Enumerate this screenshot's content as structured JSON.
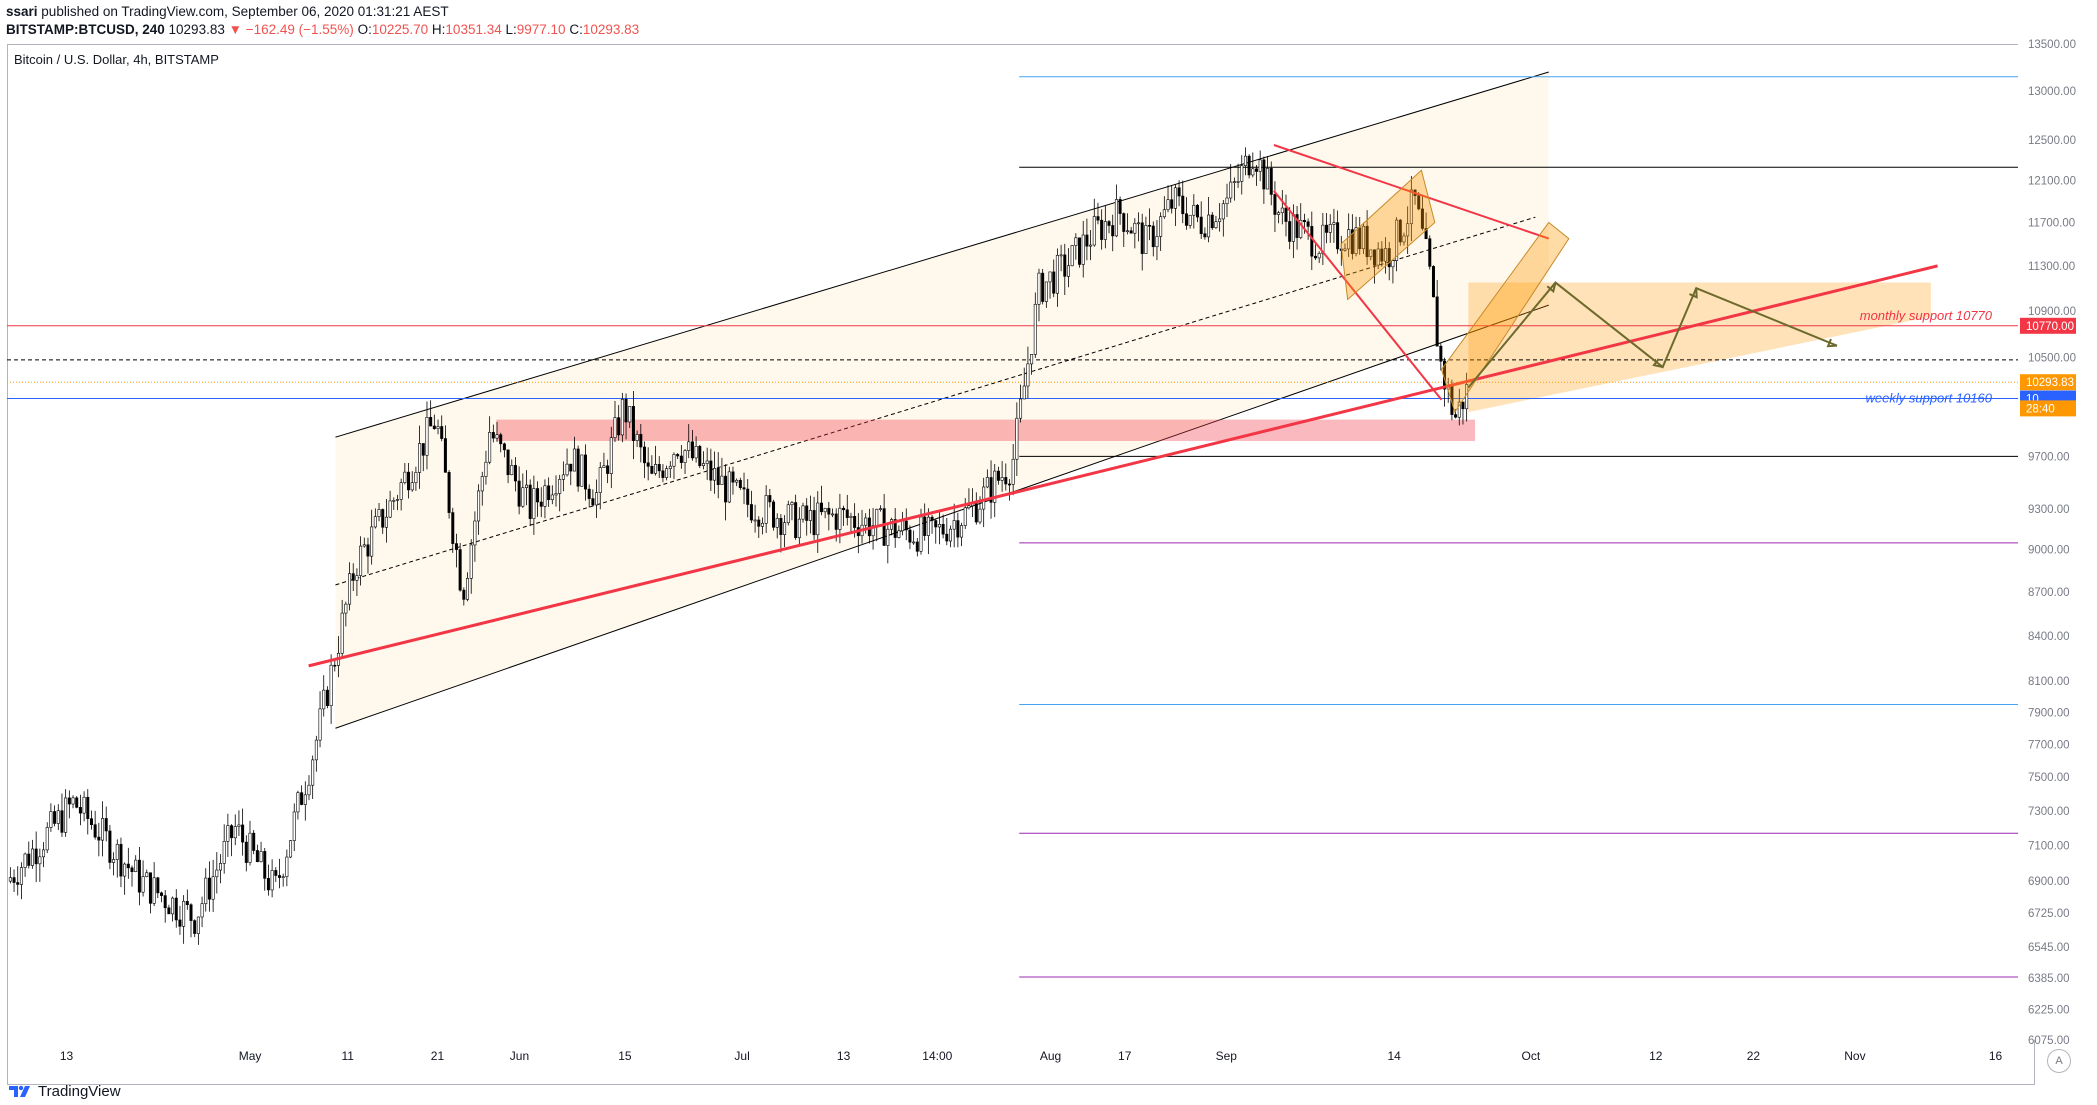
{
  "header": {
    "publisher": "ssari",
    "published_text": "published on TradingView.com, September 06, 2020 01:31:21 AEST",
    "symbol": "BITSTAMP:BTCUSD, 240",
    "last": "10293.83",
    "change": "▼ −162.49 (−1.55%)",
    "o_label": "O:",
    "o_value": "10225.70",
    "h_label": "H:",
    "h_value": "10351.34",
    "l_label": "L:",
    "l_value": "9977.10",
    "c_label": "C:",
    "c_value": "10293.83"
  },
  "footer": {
    "brand": "TradingView",
    "auto_label": "A"
  },
  "chart_data": {
    "type": "candlestick",
    "title": "Bitcoin / U.S. Dollar, 4h, BITSTAMP",
    "y_scale": "log",
    "ylim": [
      6075,
      13500
    ],
    "x_tick_labels": [
      "13",
      "May",
      "11",
      "21",
      "Jun",
      "15",
      "Jul",
      "13",
      "14:00",
      "Aug",
      "17",
      "Sep",
      "14",
      "Oct",
      "12",
      "22",
      "Nov",
      "16"
    ],
    "y_tick_labels": [
      "13500.00",
      "13000.00",
      "12500.00",
      "12100.00",
      "11700.00",
      "11300.00",
      "10900.00",
      "10500.00",
      "10100.00",
      "9700.00",
      "9300.00",
      "9000.00",
      "8700.00",
      "8400.00",
      "8100.00",
      "7900.00",
      "7700.00",
      "7500.00",
      "7300.00",
      "7100.00",
      "6900.00",
      "6725.00",
      "6545.00",
      "6385.00",
      "6225.00",
      "6075.00"
    ],
    "price_tags": [
      {
        "label": "10770.00",
        "value": 10770,
        "color": "#f23645"
      },
      {
        "label": "10293.83",
        "value": 10293.83,
        "color": "#ff9800"
      },
      {
        "label": "10",
        "value": 10160,
        "color": "#2962ff"
      },
      {
        "label": "28:40",
        "value": 10080,
        "color": "#ff9800"
      }
    ],
    "annotations": [
      {
        "text": "monthly support 10770",
        "value": 10770,
        "color": "#f23645"
      },
      {
        "text": "weekly support 10160",
        "value": 10160,
        "color": "#2962ff"
      }
    ],
    "horizontal_levels": [
      {
        "value": 13150,
        "color": "#42a5f5"
      },
      {
        "value": 12230,
        "color": "#000000"
      },
      {
        "value": 10770,
        "color": "#f23645"
      },
      {
        "value": 10480,
        "color": "#000000",
        "dashed": true
      },
      {
        "value": 10293.83,
        "color": "#ff9800",
        "dotted": true
      },
      {
        "value": 10160,
        "color": "#2962ff"
      },
      {
        "value": 9700,
        "color": "#000000"
      },
      {
        "value": 9050,
        "color": "#9c27b0"
      },
      {
        "value": 7950,
        "color": "#42a5f5"
      },
      {
        "value": 7170,
        "color": "#9c27b0"
      },
      {
        "value": 6390,
        "color": "#9c27b0"
      }
    ],
    "price_path": [
      {
        "t": 0,
        "p": 6900
      },
      {
        "t": 10,
        "p": 7350
      },
      {
        "t": 20,
        "p": 6900
      },
      {
        "t": 28,
        "p": 6700
      },
      {
        "t": 34,
        "p": 7200
      },
      {
        "t": 40,
        "p": 6850
      },
      {
        "t": 46,
        "p": 7700
      },
      {
        "t": 52,
        "p": 8900
      },
      {
        "t": 58,
        "p": 9400
      },
      {
        "t": 64,
        "p": 10000
      },
      {
        "t": 68,
        "p": 8700
      },
      {
        "t": 72,
        "p": 9900
      },
      {
        "t": 78,
        "p": 9300
      },
      {
        "t": 84,
        "p": 9700
      },
      {
        "t": 88,
        "p": 9400
      },
      {
        "t": 92,
        "p": 10100
      },
      {
        "t": 96,
        "p": 9500
      },
      {
        "t": 100,
        "p": 9800
      },
      {
        "t": 104,
        "p": 9600
      },
      {
        "t": 110,
        "p": 9350
      },
      {
        "t": 118,
        "p": 9200
      },
      {
        "t": 124,
        "p": 9250
      },
      {
        "t": 132,
        "p": 9150
      },
      {
        "t": 138,
        "p": 9100
      },
      {
        "t": 144,
        "p": 9300
      },
      {
        "t": 150,
        "p": 9650
      },
      {
        "t": 154,
        "p": 11100
      },
      {
        "t": 158,
        "p": 11300
      },
      {
        "t": 162,
        "p": 11600
      },
      {
        "t": 166,
        "p": 11800
      },
      {
        "t": 170,
        "p": 11500
      },
      {
        "t": 174,
        "p": 11900
      },
      {
        "t": 178,
        "p": 11700
      },
      {
        "t": 182,
        "p": 11900
      },
      {
        "t": 186,
        "p": 12400
      },
      {
        "t": 190,
        "p": 11750
      },
      {
        "t": 196,
        "p": 11500
      },
      {
        "t": 200,
        "p": 11600
      },
      {
        "t": 206,
        "p": 11400
      },
      {
        "t": 210,
        "p": 11900
      },
      {
        "t": 212,
        "p": 11300
      },
      {
        "t": 214,
        "p": 10400
      },
      {
        "t": 216,
        "p": 10000
      },
      {
        "t": 218,
        "p": 10250
      }
    ],
    "forecast_path": [
      {
        "t": 218,
        "p": 10250
      },
      {
        "t": 231,
        "p": 11150
      },
      {
        "t": 247,
        "p": 10420
      },
      {
        "t": 252,
        "p": 11100
      },
      {
        "t": 273,
        "p": 10600
      }
    ]
  }
}
